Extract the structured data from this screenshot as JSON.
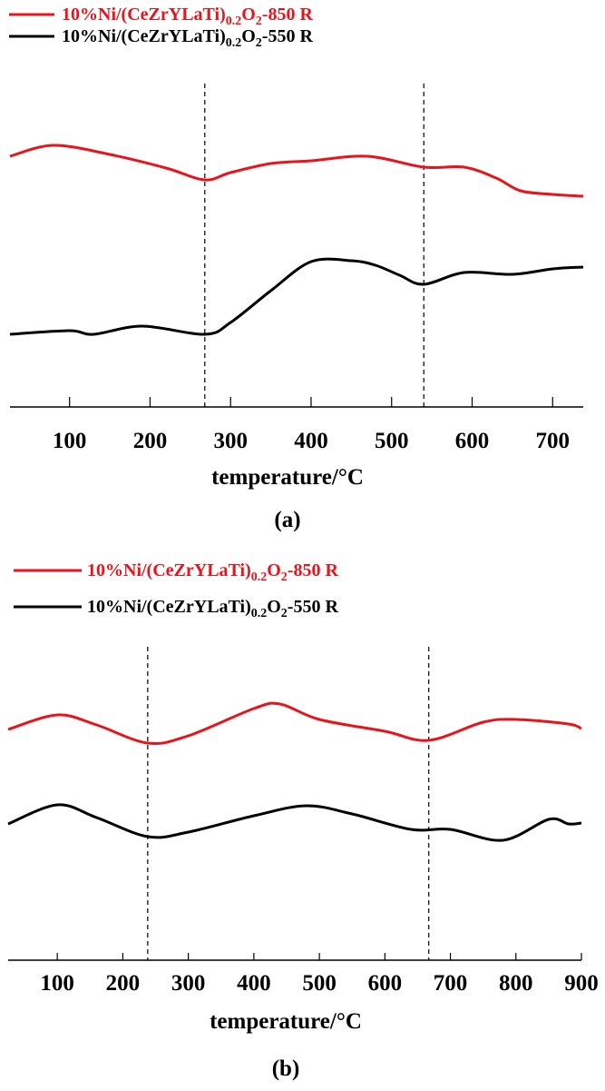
{
  "chart_data": [
    {
      "type": "line",
      "panel_label": "(a)",
      "xlabel": "temperature/°C",
      "ylabel": "",
      "y_units": "relative intensity (a.u., no y-axis ticks shown)",
      "xlim": [
        26,
        738
      ],
      "ylim": [
        0,
        350
      ],
      "xticks": [
        100,
        200,
        300,
        400,
        500,
        600,
        700
      ],
      "vlines": [
        268,
        540
      ],
      "legend_position": "top-left",
      "series": [
        {
          "name": "10%Ni/(CeZrYLaTi)0.2O2-850 R",
          "name_parts": {
            "pre": "10%Ni/(CeZrYLaTi)",
            "sub1": "0.2",
            "mid": "O",
            "sub2": "2",
            "post": "-850 R"
          },
          "color": "#e8141b",
          "x": [
            26,
            80,
            150,
            220,
            268,
            300,
            350,
            400,
            470,
            540,
            590,
            630,
            660,
            700,
            738
          ],
          "y": [
            276,
            288,
            278,
            263,
            250,
            258,
            268,
            271,
            276,
            264,
            264,
            252,
            238,
            234,
            232
          ]
        },
        {
          "name": "10%Ni/(CeZrYLaTi)0.2O2-550 R",
          "name_parts": {
            "pre": "10%Ni/(CeZrYLaTi)",
            "sub1": "0.2",
            "mid": "O",
            "sub2": "2",
            "post": "-550 R"
          },
          "color": "#000000",
          "x": [
            26,
            100,
            130,
            190,
            268,
            300,
            350,
            400,
            450,
            480,
            510,
            540,
            590,
            650,
            700,
            738
          ],
          "y": [
            80,
            84,
            80,
            89,
            80,
            93,
            128,
            160,
            161,
            156,
            145,
            135,
            148,
            146,
            152,
            154
          ]
        }
      ]
    },
    {
      "type": "line",
      "panel_label": "(b)",
      "xlabel": "temperature/°C",
      "ylabel": "",
      "y_units": "relative intensity (a.u., no y-axis ticks shown)",
      "xlim": [
        25,
        900
      ],
      "ylim": [
        0,
        350
      ],
      "xticks": [
        100,
        200,
        300,
        400,
        500,
        600,
        700,
        800,
        900
      ],
      "vlines": [
        238,
        667
      ],
      "legend_position": "top-left",
      "series": [
        {
          "name": "10%Ni/(CeZrYLaTi)0.2O2-850 R",
          "name_parts": {
            "pre": "10%Ni/(CeZrYLaTi)",
            "sub1": "0.2",
            "mid": "O",
            "sub2": "2",
            "post": "-850 R"
          },
          "color": "#e8141b",
          "x": [
            25,
            100,
            160,
            238,
            300,
            400,
            440,
            500,
            600,
            667,
            750,
            800,
            880,
            900
          ],
          "y": [
            254,
            270,
            259,
            239,
            247,
            277,
            282,
            265,
            252,
            242,
            262,
            265,
            260,
            255
          ]
        },
        {
          "name": "10%Ni/(CeZrYLaTi)0.2O2-550 R",
          "name_parts": {
            "pre": "10%Ni/(CeZrYLaTi)",
            "sub1": "0.2",
            "mid": "O",
            "sub2": "2",
            "post": "-550 R"
          },
          "color": "#000000",
          "x": [
            25,
            100,
            160,
            238,
            300,
            400,
            480,
            550,
            640,
            700,
            780,
            850,
            880,
            900
          ],
          "y": [
            150,
            171,
            157,
            136,
            141,
            159,
            170,
            161,
            144,
            144,
            132,
            155,
            150,
            151
          ]
        }
      ]
    }
  ]
}
